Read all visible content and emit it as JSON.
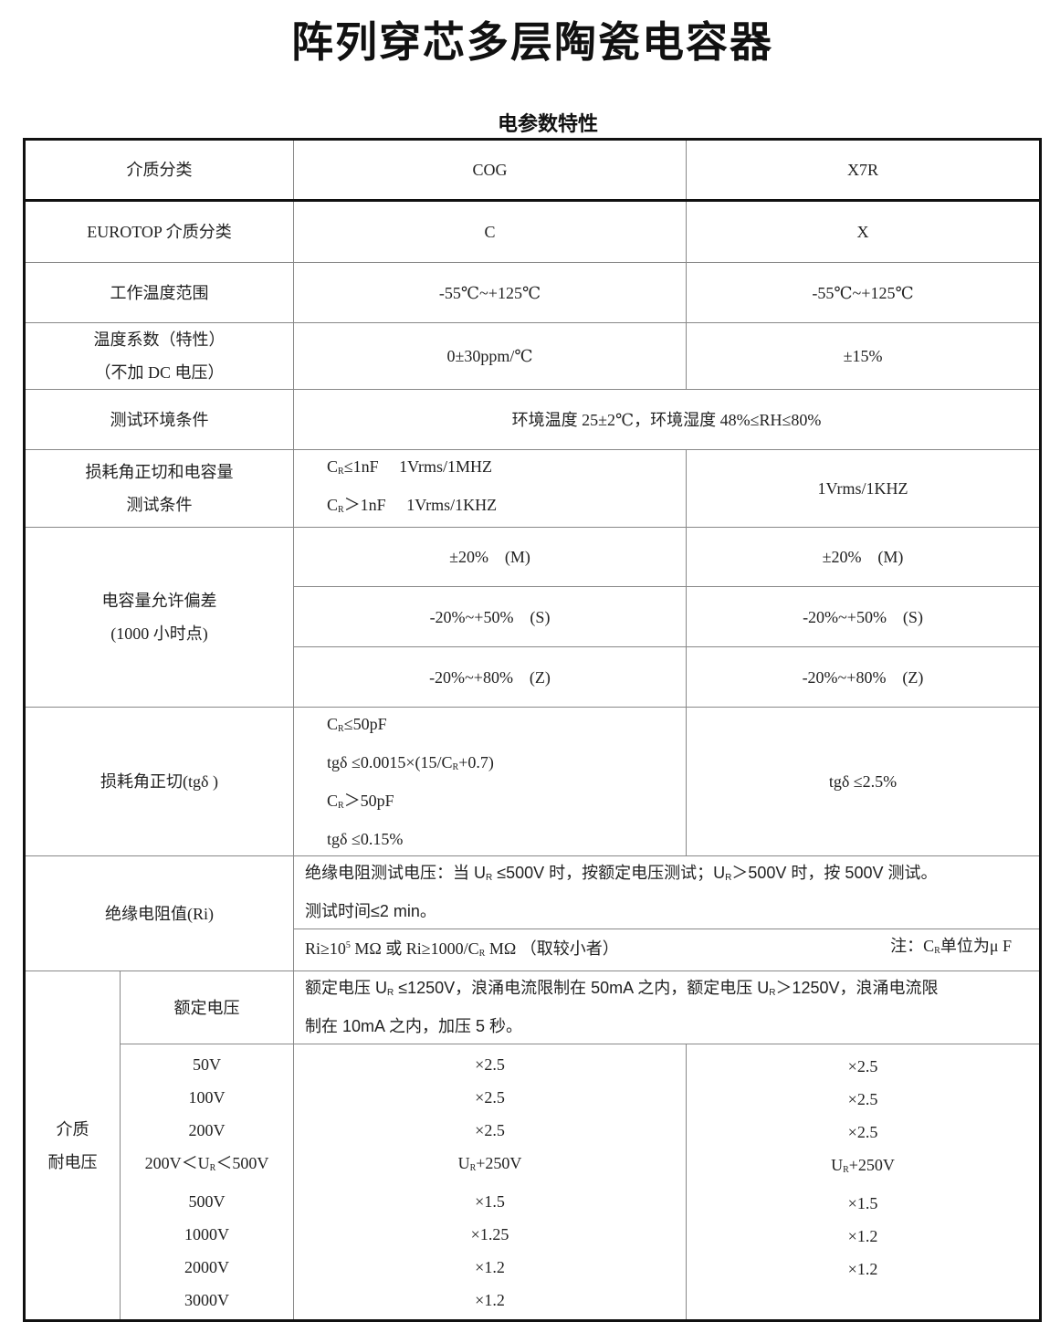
{
  "title": "阵列穿芯多层陶瓷电容器",
  "subtitle": "电参数特性",
  "header": {
    "label": "介质分类",
    "cog": "COG",
    "x7r": "X7R"
  },
  "rows": {
    "eurotop": {
      "label": "EUROTOP 介质分类",
      "cog": "C",
      "x7r": "X"
    },
    "temp_range": {
      "label": "工作温度范围",
      "cog": "-55℃~+125℃",
      "x7r": "-55℃~+125℃"
    },
    "temp_coef": {
      "label1": "温度系数（特性）",
      "label2": "（不加 DC 电压）",
      "cog": "0±30ppm/℃",
      "x7r": "±15%"
    },
    "test_env": {
      "label": "测试环境条件",
      "value": "环境温度 25±2℃，环境湿度 48%≤RH≤80%"
    },
    "loss_test": {
      "label1": "损耗角正切和电容量",
      "label2": "测试条件",
      "cog": [
        [
          [
            "C",
            ""
          ],
          [
            "R",
            "sub"
          ],
          [
            "≤1nF　 1Vrms/1MHZ",
            ""
          ]
        ],
        [
          [
            "C",
            ""
          ],
          [
            "R",
            "sub"
          ],
          [
            "＞1nF　 1Vrms/1KHZ",
            ""
          ]
        ]
      ],
      "x7r": "1Vrms/1KHZ"
    },
    "tolerance": {
      "label1": "电容量允许偏差",
      "label2": "(1000 小时点)",
      "values": [
        {
          "cog": "±20%　(M)",
          "x7r": "±20%　(M)"
        },
        {
          "cog": "-20%~+50%　(S)",
          "x7r": "-20%~+50%　(S)"
        },
        {
          "cog": "-20%~+80%　(Z)",
          "x7r": "-20%~+80%　(Z)"
        }
      ]
    },
    "tg": {
      "label": "损耗角正切(tgδ )",
      "cog": [
        [
          [
            "C",
            ""
          ],
          [
            "R",
            "sub"
          ],
          [
            "≤50pF",
            ""
          ]
        ],
        [
          [
            "tgδ ≤0.0015×(15/C",
            ""
          ],
          [
            "R",
            "sub"
          ],
          [
            "+0.7)",
            ""
          ]
        ],
        [
          [
            "C",
            ""
          ],
          [
            "R",
            "sub"
          ],
          [
            "＞50pF",
            ""
          ]
        ],
        [
          [
            "tgδ ≤0.15%",
            ""
          ]
        ]
      ],
      "x7r": "tgδ ≤2.5%"
    },
    "ri": {
      "label": "绝缘电阻值(Ri)",
      "test": [
        [
          [
            "绝缘电阻测试电压：当 U",
            ""
          ],
          [
            "R",
            "sub"
          ],
          [
            " ≤500V 时，按额定电压测试；U",
            ""
          ],
          [
            "R",
            "sub"
          ],
          [
            "＞500V 时，按 500V 测试。",
            ""
          ]
        ],
        [
          [
            "测试时间≤2 min。",
            ""
          ]
        ]
      ],
      "formula": [
        [
          "Ri≥10",
          ""
        ],
        [
          "5",
          "sup"
        ],
        [
          " MΩ 或 Ri≥1000/C",
          ""
        ],
        [
          "R",
          "sub"
        ],
        [
          " MΩ （取较小者）",
          ""
        ]
      ],
      "note": [
        [
          "注：C",
          ""
        ],
        [
          "R",
          "sub"
        ],
        [
          "单位为μ F",
          ""
        ]
      ]
    },
    "withstand": {
      "label1": "介质",
      "label2": "耐电压",
      "rated_label": "额定电压",
      "rated_text": [
        [
          [
            "额定电压 U",
            ""
          ],
          [
            "R",
            "sub"
          ],
          [
            " ≤1250V，浪涌电流限制在 50mA 之内，额定电压 U",
            ""
          ],
          [
            "R",
            "sub"
          ],
          [
            "＞1250V，浪涌电流限",
            ""
          ]
        ],
        [
          [
            "制在 10mA 之内，加压 5 秒。",
            ""
          ]
        ]
      ],
      "voltages": [
        [
          [
            "50V",
            ""
          ]
        ],
        [
          [
            "100V",
            ""
          ]
        ],
        [
          [
            "200V",
            ""
          ]
        ],
        [
          [
            "200V＜U",
            ""
          ],
          [
            "R",
            "sub"
          ],
          [
            "＜500V",
            ""
          ]
        ],
        [
          [
            "500V",
            ""
          ]
        ],
        [
          [
            "1000V",
            ""
          ]
        ],
        [
          [
            "2000V",
            ""
          ]
        ],
        [
          [
            "3000V",
            ""
          ]
        ]
      ],
      "cog": [
        [
          [
            "×2.5",
            ""
          ]
        ],
        [
          [
            "×2.5",
            ""
          ]
        ],
        [
          [
            "×2.5",
            ""
          ]
        ],
        [
          [
            "U",
            ""
          ],
          [
            "R",
            "sub"
          ],
          [
            "+250V",
            ""
          ]
        ],
        [
          [
            "×1.5",
            ""
          ]
        ],
        [
          [
            "×1.25",
            ""
          ]
        ],
        [
          [
            "×1.2",
            ""
          ]
        ],
        [
          [
            "×1.2",
            ""
          ]
        ]
      ],
      "x7r": [
        [
          [
            "×2.5",
            ""
          ]
        ],
        [
          [
            "×2.5",
            ""
          ]
        ],
        [
          [
            "×2.5",
            ""
          ]
        ],
        [
          [
            "U",
            ""
          ],
          [
            "R",
            "sub"
          ],
          [
            "+250V",
            ""
          ]
        ],
        [
          [
            "×1.5",
            ""
          ]
        ],
        [
          [
            "×1.2",
            ""
          ]
        ],
        [
          [
            "×1.2",
            ""
          ]
        ]
      ]
    }
  }
}
